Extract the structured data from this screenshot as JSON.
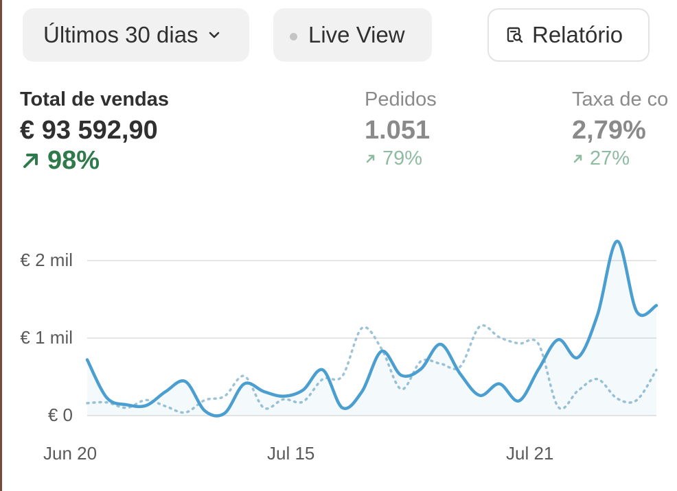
{
  "toolbar": {
    "range_label": "Últimos 30 dias",
    "live_label": "Live View",
    "report_label": "Relatório"
  },
  "metrics": [
    {
      "label": "Total de vendas",
      "value": "€ 93 592,90",
      "change": "98%"
    },
    {
      "label": "Pedidos",
      "value": "1.051",
      "change": "79%"
    },
    {
      "label": "Taxa de co",
      "value": "2,79%",
      "change": "27%"
    }
  ],
  "icons": {
    "range_chevron": "chevron-down-icon",
    "live_dot": "status-dot-icon",
    "report_icon": "report-search-icon",
    "trend_arrow": "arrow-up-right-icon"
  },
  "colors": {
    "primary_series": "#4a9fd0",
    "comparison_series": "#9dc3d6",
    "positive_change": "#2e7a4a",
    "muted_positive_change": "#8fbba0",
    "gridline": "#e5e5e5"
  },
  "chart_data": {
    "type": "line",
    "title": "",
    "xlabel": "",
    "ylabel": "",
    "ytick_labels": [
      "€ 0",
      "€ 1 mil",
      "€ 2 mil"
    ],
    "yticks": [
      0,
      1000,
      2000
    ],
    "ylim": [
      0,
      2300
    ],
    "xtick_labels": [
      "Jun 20",
      "Jul 15",
      "Jul 21"
    ],
    "xtick_index": [
      0,
      25,
      31
    ],
    "grid": true,
    "series": [
      {
        "style": "solid",
        "values": [
          720,
          230,
          140,
          130,
          310,
          440,
          60,
          30,
          410,
          310,
          250,
          330,
          590,
          100,
          310,
          830,
          520,
          600,
          920,
          540,
          260,
          410,
          190,
          600,
          980,
          750,
          1300,
          2250,
          1340,
          1420
        ]
      },
      {
        "style": "dotted",
        "values": [
          160,
          170,
          100,
          200,
          120,
          40,
          200,
          250,
          510,
          100,
          210,
          180,
          470,
          510,
          1130,
          860,
          340,
          700,
          670,
          630,
          1150,
          1010,
          930,
          920,
          110,
          320,
          470,
          220,
          200,
          590
        ]
      }
    ]
  }
}
